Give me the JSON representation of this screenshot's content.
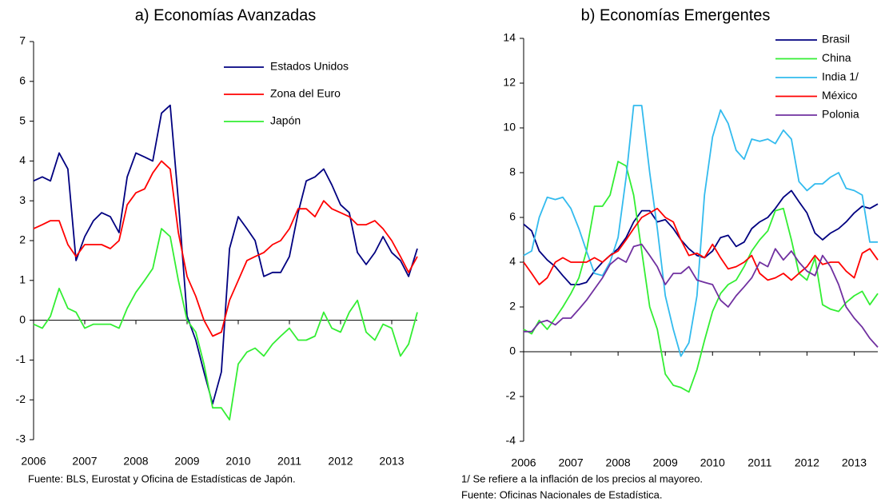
{
  "chart_data": [
    {
      "type": "line",
      "title": "a) Economías Avanzadas",
      "legend": "top-center",
      "notes": [
        "Fuente: BLS, Eurostat y Oficina de Estadísticas de Japón."
      ],
      "x": [
        2006.0,
        2006.17,
        2006.33,
        2006.5,
        2006.67,
        2006.83,
        2007.0,
        2007.17,
        2007.33,
        2007.5,
        2007.67,
        2007.83,
        2008.0,
        2008.17,
        2008.33,
        2008.5,
        2008.67,
        2008.83,
        2009.0,
        2009.17,
        2009.33,
        2009.5,
        2009.67,
        2009.83,
        2010.0,
        2010.17,
        2010.33,
        2010.5,
        2010.67,
        2010.83,
        2011.0,
        2011.17,
        2011.33,
        2011.5,
        2011.67,
        2011.83,
        2012.0,
        2012.17,
        2012.33,
        2012.5,
        2012.67,
        2012.83,
        2013.0,
        2013.17,
        2013.33,
        2013.5
      ],
      "xlim": [
        2006,
        2013.5
      ],
      "xticks": [
        2006,
        2007,
        2008,
        2009,
        2010,
        2011,
        2012,
        2013
      ],
      "ylim": [
        -3,
        7
      ],
      "yticks": [
        -3,
        -2,
        -1,
        0,
        1,
        2,
        3,
        4,
        5,
        6,
        7
      ],
      "series": [
        {
          "name": "Estados Unidos",
          "color": "#000080",
          "values": [
            3.5,
            3.6,
            3.5,
            4.2,
            3.8,
            1.5,
            2.1,
            2.5,
            2.7,
            2.6,
            2.2,
            3.6,
            4.2,
            4.1,
            4.0,
            5.2,
            5.4,
            3.0,
            0.1,
            -0.5,
            -1.3,
            -2.1,
            -1.3,
            1.8,
            2.6,
            2.3,
            2.0,
            1.1,
            1.2,
            1.2,
            1.6,
            2.7,
            3.5,
            3.6,
            3.8,
            3.4,
            2.9,
            2.7,
            1.7,
            1.4,
            1.7,
            2.1,
            1.7,
            1.5,
            1.1,
            1.8
          ]
        },
        {
          "name": "Zona del Euro",
          "color": "#ff0000",
          "values": [
            2.3,
            2.4,
            2.5,
            2.5,
            1.9,
            1.6,
            1.9,
            1.9,
            1.9,
            1.8,
            2.0,
            2.9,
            3.2,
            3.3,
            3.7,
            4.0,
            3.8,
            2.2,
            1.1,
            0.6,
            0.0,
            -0.4,
            -0.3,
            0.5,
            1.0,
            1.5,
            1.6,
            1.7,
            1.9,
            2.0,
            2.3,
            2.8,
            2.8,
            2.6,
            3.0,
            2.8,
            2.7,
            2.6,
            2.4,
            2.4,
            2.5,
            2.3,
            2.0,
            1.6,
            1.2,
            1.6
          ]
        },
        {
          "name": "Japón",
          "color": "#33ee33",
          "values": [
            -0.1,
            -0.2,
            0.1,
            0.8,
            0.3,
            0.2,
            -0.2,
            -0.1,
            -0.1,
            -0.1,
            -0.2,
            0.3,
            0.7,
            1.0,
            1.3,
            2.3,
            2.1,
            1.0,
            0.0,
            -0.3,
            -1.1,
            -2.2,
            -2.2,
            -2.5,
            -1.1,
            -0.8,
            -0.7,
            -0.9,
            -0.6,
            -0.4,
            -0.2,
            -0.5,
            -0.5,
            -0.4,
            0.2,
            -0.2,
            -0.3,
            0.2,
            0.5,
            -0.3,
            -0.5,
            -0.1,
            -0.2,
            -0.9,
            -0.6,
            0.2
          ]
        }
      ]
    },
    {
      "type": "line",
      "title": "b) Economías Emergentes",
      "legend": "top-right",
      "notes": [
        "1/ Se refiere a la inflación de los precios al mayoreo.",
        "Fuente: Oficinas Nacionales de Estadística."
      ],
      "x": [
        2006.0,
        2006.17,
        2006.33,
        2006.5,
        2006.67,
        2006.83,
        2007.0,
        2007.17,
        2007.33,
        2007.5,
        2007.67,
        2007.83,
        2008.0,
        2008.17,
        2008.33,
        2008.5,
        2008.67,
        2008.83,
        2009.0,
        2009.17,
        2009.33,
        2009.5,
        2009.67,
        2009.83,
        2010.0,
        2010.17,
        2010.33,
        2010.5,
        2010.67,
        2010.83,
        2011.0,
        2011.17,
        2011.33,
        2011.5,
        2011.67,
        2011.83,
        2012.0,
        2012.17,
        2012.33,
        2012.5,
        2012.67,
        2012.83,
        2013.0,
        2013.17,
        2013.33,
        2013.5
      ],
      "xlim": [
        2006,
        2013.5
      ],
      "xticks": [
        2006,
        2007,
        2008,
        2009,
        2010,
        2011,
        2012,
        2013
      ],
      "ylim": [
        -4,
        14
      ],
      "yticks": [
        -4,
        -2,
        0,
        2,
        4,
        6,
        8,
        10,
        12,
        14
      ],
      "series": [
        {
          "name": "Brasil",
          "color": "#000080",
          "values": [
            5.7,
            5.4,
            4.5,
            4.1,
            3.8,
            3.4,
            3.0,
            3.0,
            3.1,
            3.6,
            4.0,
            4.3,
            4.6,
            5.1,
            5.8,
            6.3,
            6.3,
            5.8,
            5.9,
            5.5,
            5.0,
            4.6,
            4.3,
            4.2,
            4.5,
            5.1,
            5.2,
            4.7,
            4.9,
            5.5,
            5.8,
            6.0,
            6.4,
            6.9,
            7.2,
            6.7,
            6.2,
            5.3,
            5.0,
            5.3,
            5.5,
            5.8,
            6.2,
            6.5,
            6.4,
            6.6
          ]
        },
        {
          "name": "China",
          "color": "#33ee33",
          "values": [
            1.0,
            0.8,
            1.4,
            1.0,
            1.5,
            2.0,
            2.6,
            3.3,
            4.5,
            6.5,
            6.5,
            7.0,
            8.5,
            8.3,
            7.0,
            4.5,
            2.0,
            1.0,
            -1.0,
            -1.5,
            -1.6,
            -1.8,
            -0.8,
            0.5,
            1.8,
            2.6,
            3.0,
            3.2,
            3.8,
            4.5,
            5.0,
            5.4,
            6.3,
            6.4,
            5.0,
            3.5,
            3.2,
            4.2,
            2.1,
            1.9,
            1.8,
            2.2,
            2.5,
            2.7,
            2.1,
            2.6
          ]
        },
        {
          "name": "India 1/",
          "color": "#33bbee",
          "values": [
            4.3,
            4.5,
            6.0,
            6.9,
            6.8,
            6.9,
            6.4,
            5.5,
            4.5,
            3.5,
            3.4,
            4.0,
            5.1,
            7.8,
            11.0,
            11.0,
            8.0,
            5.5,
            2.5,
            1.0,
            -0.2,
            0.4,
            2.5,
            7.0,
            9.6,
            10.8,
            10.2,
            9.0,
            8.6,
            9.5,
            9.4,
            9.5,
            9.3,
            9.9,
            9.5,
            7.6,
            7.2,
            7.5,
            7.5,
            7.8,
            8.0,
            7.3,
            7.2,
            7.0,
            4.9,
            4.9
          ]
        },
        {
          "name": "México",
          "color": "#ff0000",
          "values": [
            4.0,
            3.5,
            3.0,
            3.3,
            4.0,
            4.2,
            4.0,
            4.0,
            4.0,
            4.2,
            4.0,
            4.3,
            4.5,
            5.0,
            5.5,
            6.0,
            6.2,
            6.4,
            6.0,
            5.8,
            5.0,
            4.3,
            4.4,
            4.2,
            4.8,
            4.2,
            3.7,
            3.8,
            4.0,
            4.3,
            3.5,
            3.2,
            3.3,
            3.5,
            3.2,
            3.5,
            3.8,
            4.3,
            3.9,
            4.0,
            4.0,
            3.6,
            3.3,
            4.4,
            4.6,
            4.1
          ]
        },
        {
          "name": "Polonia",
          "color": "#7030a0",
          "values": [
            0.9,
            0.9,
            1.3,
            1.4,
            1.2,
            1.5,
            1.5,
            1.9,
            2.3,
            2.8,
            3.3,
            3.9,
            4.2,
            4.0,
            4.7,
            4.8,
            4.3,
            3.8,
            3.0,
            3.5,
            3.5,
            3.8,
            3.2,
            3.1,
            3.0,
            2.3,
            2.0,
            2.5,
            2.9,
            3.3,
            4.0,
            3.8,
            4.6,
            4.1,
            4.5,
            4.0,
            3.6,
            3.4,
            4.3,
            3.8,
            3.0,
            2.0,
            1.5,
            1.1,
            0.6,
            0.2
          ]
        }
      ]
    }
  ]
}
